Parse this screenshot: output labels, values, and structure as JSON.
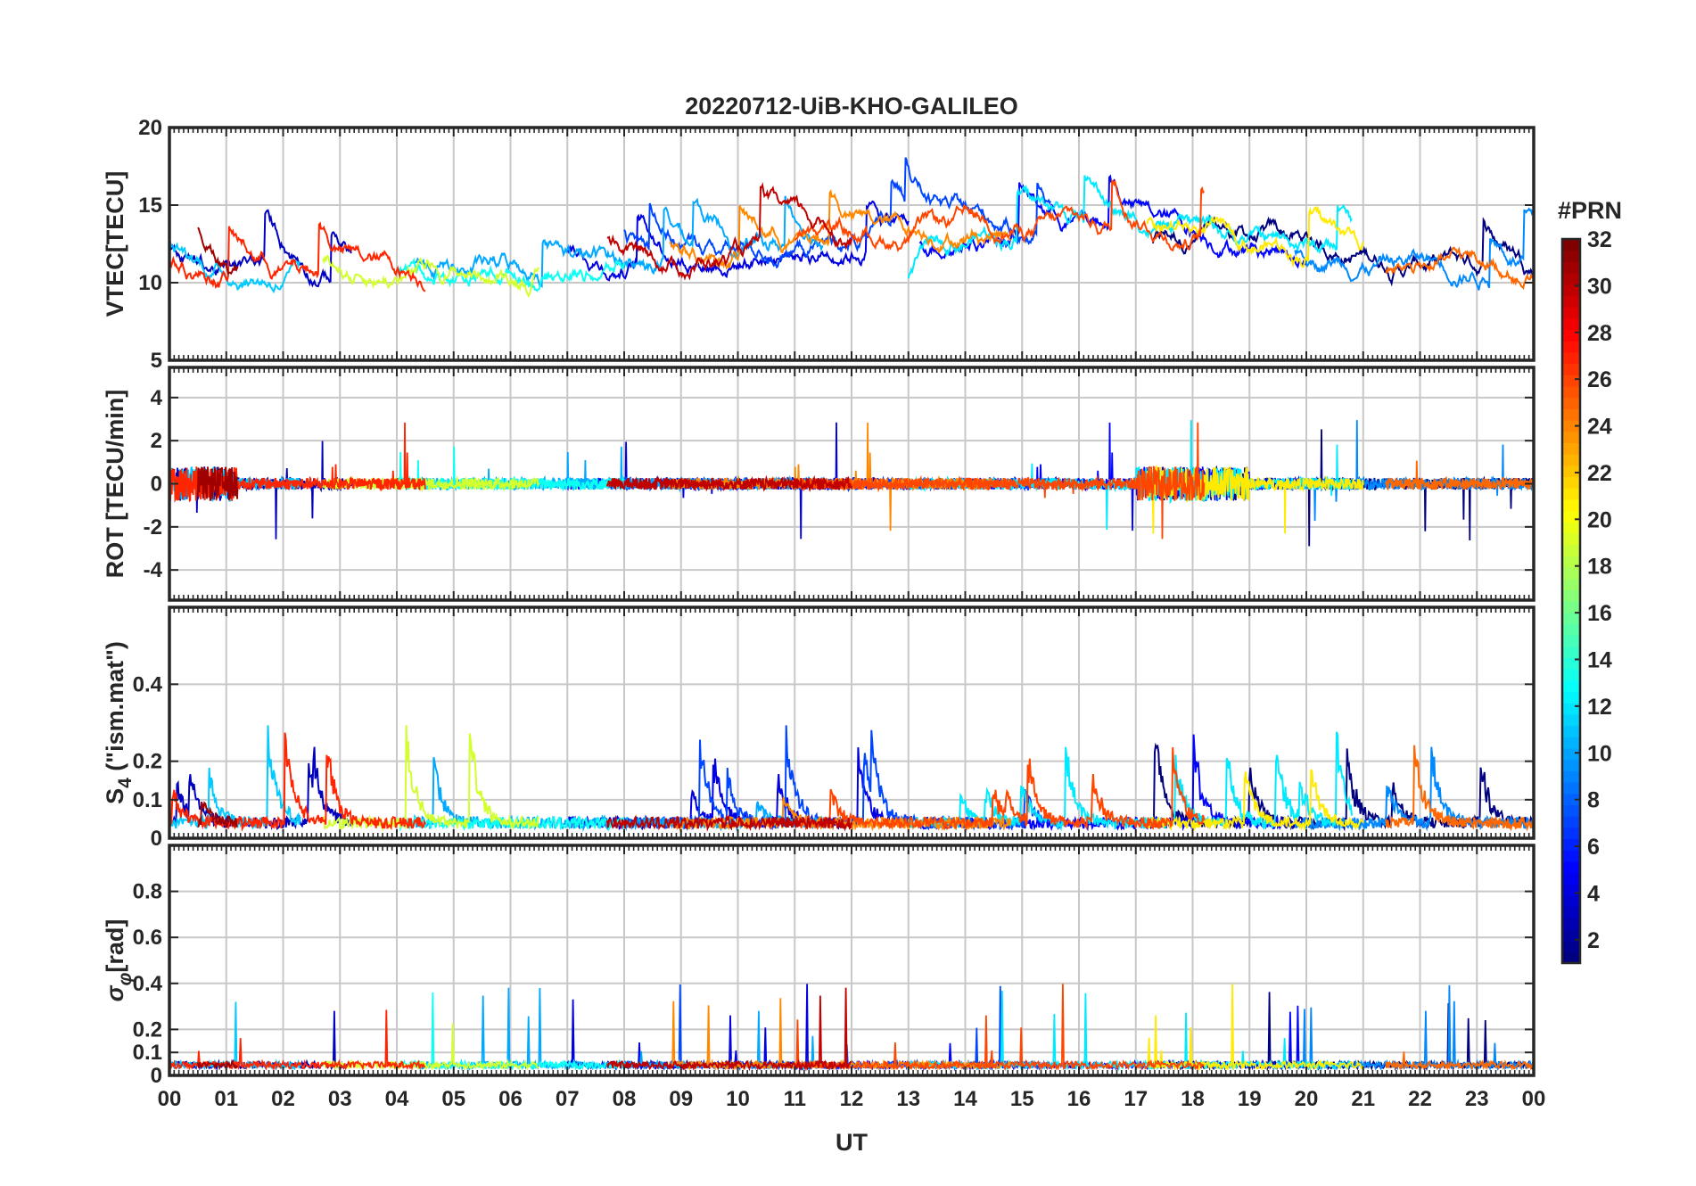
{
  "chart_data": {
    "type": "line",
    "title": "20220712-UiB-KHO-GALILEO",
    "xlabel": "UT",
    "x_tick_labels": [
      "00",
      "01",
      "02",
      "03",
      "04",
      "05",
      "06",
      "07",
      "08",
      "09",
      "10",
      "11",
      "12",
      "13",
      "14",
      "15",
      "16",
      "17",
      "18",
      "19",
      "20",
      "21",
      "22",
      "23",
      "00"
    ],
    "xlim_hours": [
      0,
      24
    ],
    "grid": true,
    "colorbar": {
      "title": "#PRN",
      "range": [
        1,
        32
      ],
      "tick_labels": [
        "2",
        "4",
        "6",
        "8",
        "10",
        "12",
        "14",
        "16",
        "18",
        "20",
        "22",
        "24",
        "26",
        "28",
        "30",
        "32"
      ],
      "colormap": "jet",
      "placement": "right"
    },
    "panels": [
      {
        "ylabel": "VTEC[TECU]",
        "ylim": [
          5,
          20
        ],
        "y_ticks": [
          5,
          10,
          15,
          20
        ],
        "y_tick_labels": [
          "5",
          "10",
          "15",
          "20"
        ]
      },
      {
        "ylabel": "ROT [TECU/min]",
        "ylim": [
          -5.4,
          5.4
        ],
        "y_ticks": [
          -4,
          -2,
          0,
          2,
          4
        ],
        "y_tick_labels": [
          "-4",
          "-2",
          "0",
          "2",
          "4"
        ]
      },
      {
        "ylabel": "S4 (\"ism.mat\")",
        "ylabel_main": "S",
        "ylabel_sub": "4",
        "ylabel_rest": " (\"ism.mat\")",
        "ylim": [
          0,
          0.6
        ],
        "y_ticks": [
          0,
          0.1,
          0.2,
          0.4
        ],
        "y_tick_labels": [
          "0",
          "0.1",
          "0.2",
          "0.4"
        ]
      },
      {
        "ylabel": "σφ[rad]",
        "ylabel_main": "σ",
        "ylabel_sub": "φ",
        "ylabel_rest": "[rad]",
        "ylim": [
          0,
          1
        ],
        "y_ticks": [
          0,
          0.1,
          0.2,
          0.4,
          0.6,
          0.8
        ],
        "y_tick_labels": [
          "0",
          "0.1",
          "0.2",
          "0.4",
          "0.6",
          "0.8"
        ]
      }
    ],
    "series_prn": [
      1,
      3,
      4,
      5,
      7,
      9,
      10,
      11,
      12,
      13,
      19,
      21,
      24,
      25,
      26,
      27,
      30,
      31
    ],
    "series_visibility_hours": [
      [
        17.3,
        24.0
      ],
      [
        0.0,
        3.2
      ],
      [
        7.0,
        13.0
      ],
      [
        13.2,
        20.0
      ],
      [
        8.0,
        15.5
      ],
      [
        19.8,
        24.0
      ],
      [
        4.3,
        11.5
      ],
      [
        0.0,
        2.3
      ],
      [
        13.0,
        20.8
      ],
      [
        4.0,
        8.0
      ],
      [
        2.7,
        6.5
      ],
      [
        17.2,
        21.0
      ],
      [
        8.8,
        14.8
      ],
      [
        21.4,
        24.0
      ],
      [
        11.0,
        18.2
      ],
      [
        0.0,
        4.5
      ],
      [
        7.7,
        12.0
      ],
      [
        0.5,
        1.2
      ]
    ]
  }
}
